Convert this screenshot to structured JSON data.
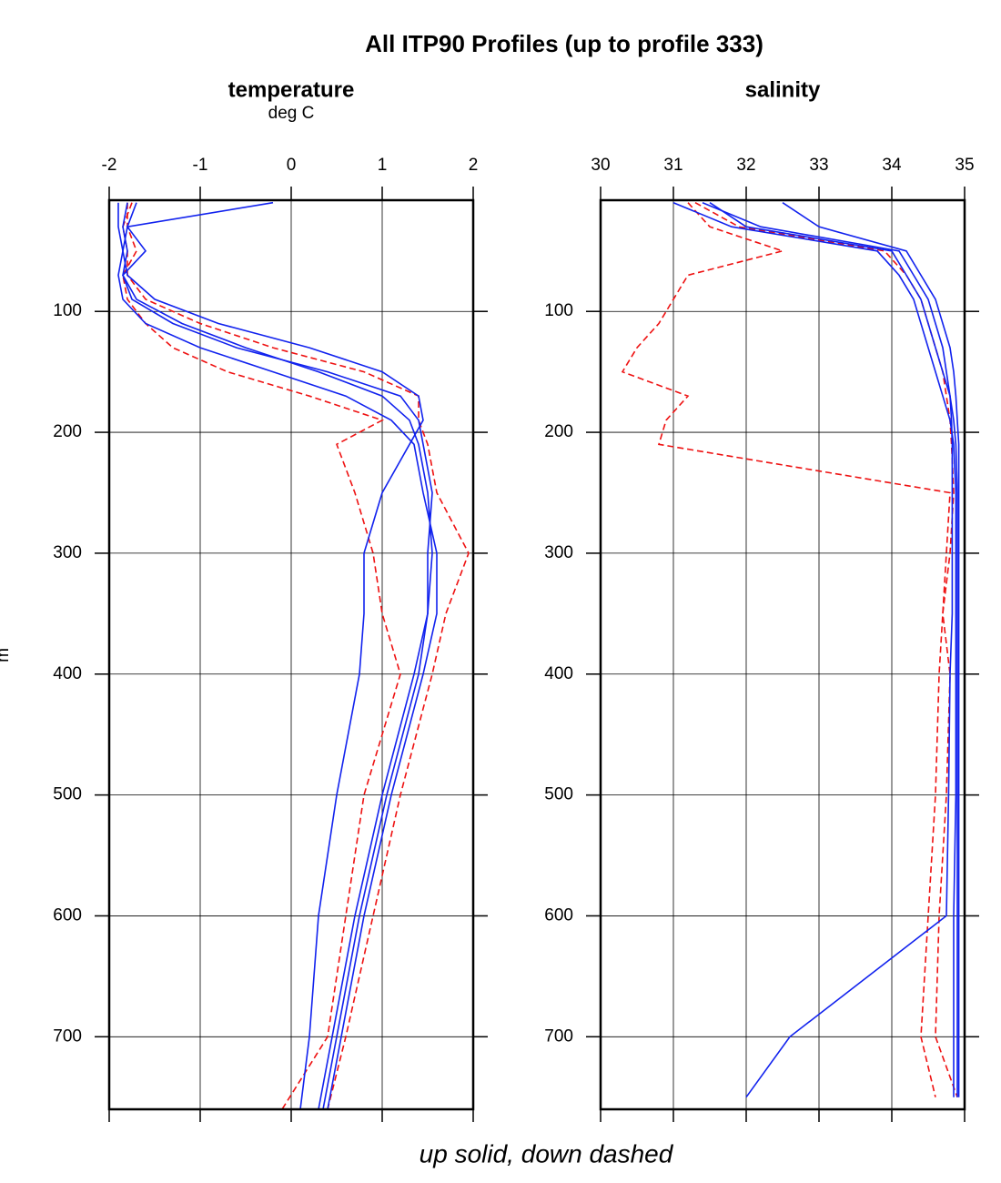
{
  "title": "All ITP90 Profiles (up to profile 333)",
  "caption": "up solid, down dashed",
  "y_label": "m",
  "chart_data": [
    {
      "type": "line",
      "title": "temperature",
      "subtitle": "deg C",
      "xlim": [
        -2,
        2
      ],
      "xticks": [
        -2,
        -1,
        0,
        1,
        2
      ],
      "ylim": [
        760,
        8
      ],
      "yticks": [
        100,
        200,
        300,
        400,
        500,
        600,
        700
      ],
      "grid": true,
      "y": [
        10,
        30,
        50,
        70,
        90,
        110,
        130,
        150,
        170,
        190,
        210,
        250,
        300,
        350,
        400,
        500,
        600,
        700,
        760
      ],
      "series": [
        {
          "color": "#ee1111",
          "dash": true,
          "x": [
            -1.8,
            -1.8,
            -1.7,
            -1.85,
            -1.8,
            -1.6,
            -1.3,
            -0.7,
            0.2,
            1.0,
            0.5,
            0.7,
            0.9,
            1.0,
            1.2,
            0.8,
            0.6,
            0.4,
            -0.1
          ]
        },
        {
          "color": "#ee1111",
          "dash": true,
          "x": [
            -1.75,
            -1.85,
            -1.8,
            -1.8,
            -1.6,
            -1.0,
            -0.2,
            0.8,
            1.4,
            1.4,
            1.5,
            1.6,
            1.95,
            1.7,
            1.55,
            1.2,
            0.9,
            0.6,
            0.4
          ]
        },
        {
          "color": "#1122ee",
          "dash": false,
          "x": [
            -1.8,
            -1.85,
            -1.8,
            -1.85,
            -1.7,
            -1.2,
            -0.5,
            0.3,
            1.0,
            1.3,
            1.4,
            1.5,
            1.55,
            1.5,
            1.35,
            1.0,
            0.7,
            0.45,
            0.3
          ]
        },
        {
          "color": "#1122ee",
          "dash": false,
          "x": [
            -1.9,
            -1.9,
            -1.85,
            -1.9,
            -1.85,
            -1.6,
            -1.0,
            -0.2,
            0.6,
            1.1,
            1.35,
            1.45,
            1.6,
            1.6,
            1.45,
            1.1,
            0.8,
            0.55,
            0.4
          ]
        },
        {
          "color": "#1122ee",
          "dash": false,
          "x": [
            -1.7,
            -1.8,
            -1.85,
            -1.8,
            -1.5,
            -0.8,
            0.2,
            1.0,
            1.4,
            1.45,
            1.3,
            1.0,
            0.8,
            0.8,
            0.75,
            0.5,
            0.3,
            0.2,
            0.1
          ]
        },
        {
          "color": "#1122ee",
          "dash": false,
          "x": [
            -0.2,
            -1.8,
            -1.6,
            -1.85,
            -1.75,
            -1.3,
            -0.6,
            0.4,
            1.2,
            1.4,
            1.45,
            1.55,
            1.5,
            1.5,
            1.4,
            1.05,
            0.75,
            0.5,
            0.35
          ]
        }
      ]
    },
    {
      "type": "line",
      "title": "salinity",
      "xlim": [
        30,
        35
      ],
      "xticks": [
        30,
        31,
        32,
        33,
        34,
        35
      ],
      "ylim": [
        760,
        8
      ],
      "yticks": [
        100,
        200,
        300,
        400,
        500,
        600,
        700
      ],
      "grid": true,
      "y": [
        10,
        30,
        50,
        70,
        90,
        110,
        130,
        150,
        170,
        190,
        210,
        250,
        300,
        350,
        400,
        500,
        600,
        700,
        750
      ],
      "series": [
        {
          "color": "#ee1111",
          "dash": true,
          "x": [
            31.2,
            31.5,
            32.5,
            31.2,
            31.0,
            30.8,
            30.5,
            30.3,
            31.2,
            30.9,
            30.8,
            34.8,
            34.75,
            34.7,
            34.65,
            34.6,
            34.5,
            34.4,
            34.6
          ]
        },
        {
          "color": "#ee1111",
          "dash": true,
          "x": [
            31.3,
            31.9,
            33.9,
            34.2,
            34.4,
            34.5,
            34.6,
            34.7,
            34.75,
            34.8,
            34.82,
            34.85,
            34.8,
            34.7,
            34.8,
            34.75,
            34.65,
            34.6,
            34.9
          ]
        },
        {
          "color": "#1122ee",
          "dash": false,
          "x": [
            31.5,
            32.0,
            34.0,
            34.2,
            34.4,
            34.5,
            34.6,
            34.7,
            34.8,
            34.85,
            34.88,
            34.9,
            34.9,
            34.9,
            34.9,
            34.9,
            34.9,
            34.9,
            34.9
          ]
        },
        {
          "color": "#1122ee",
          "dash": false,
          "x": [
            31.0,
            31.8,
            33.8,
            34.1,
            34.3,
            34.4,
            34.5,
            34.6,
            34.7,
            34.8,
            34.85,
            34.88,
            34.88,
            34.88,
            34.88,
            34.88,
            34.85,
            34.85,
            34.85
          ]
        },
        {
          "color": "#1122ee",
          "dash": false,
          "x": [
            32.5,
            33.0,
            34.2,
            34.4,
            34.6,
            34.7,
            34.8,
            34.85,
            34.88,
            34.9,
            34.92,
            34.92,
            34.92,
            34.92,
            34.92,
            34.92,
            34.92,
            34.92,
            34.92
          ]
        },
        {
          "color": "#1122ee",
          "dash": false,
          "x": [
            31.4,
            32.2,
            34.1,
            34.3,
            34.5,
            34.6,
            34.7,
            34.75,
            34.8,
            34.82,
            34.83,
            34.83,
            34.83,
            34.83,
            34.8,
            34.78,
            34.75,
            32.6,
            32.0
          ]
        }
      ]
    }
  ]
}
